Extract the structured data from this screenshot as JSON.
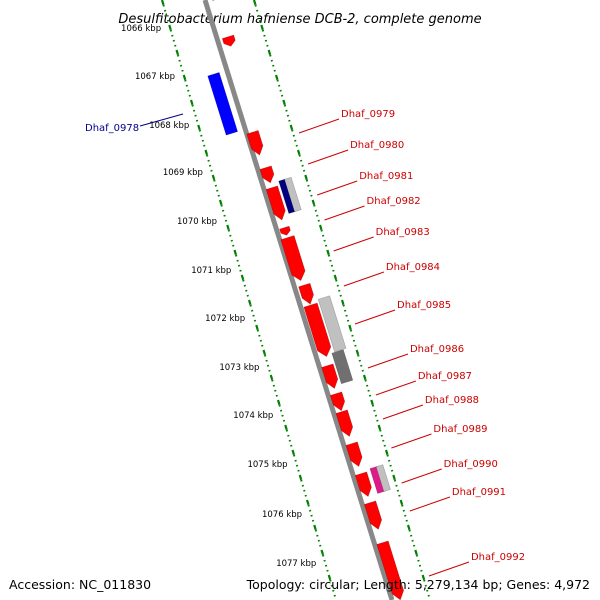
{
  "title": "Desulfitobacterium hafniense DCB-2, complete genome",
  "accession": "Accession: NC_011830",
  "topology": "Topology: circular; Length: 5,279,134 bp; Genes: 4,972",
  "kbp_labels": [
    "1066 kbp",
    "1067 kbp",
    "1068 kbp",
    "1069 kbp",
    "1070 kbp",
    "1071 kbp",
    "1072 kbp",
    "1073 kbp",
    "1074 kbp",
    "1075 kbp",
    "1076 kbp",
    "1077 kbp"
  ],
  "left_gene_label": {
    "text": "Dhaf_0978",
    "color": "#00008b"
  },
  "right_gene_labels": [
    "Dhaf_0979",
    "Dhaf_0980",
    "Dhaf_0981",
    "Dhaf_0982",
    "Dhaf_0983",
    "Dhaf_0984",
    "Dhaf_0985",
    "Dhaf_0986",
    "Dhaf_0987",
    "Dhaf_0988",
    "Dhaf_0989",
    "Dhaf_0990",
    "Dhaf_0991",
    "Dhaf_0992"
  ],
  "colors": {
    "forward_gene": "#ff0000",
    "reverse_gene": "#0000ff",
    "backbone": "#888888",
    "ticks": "#008000",
    "gene_label": "#cc0000",
    "highlight_navy": "#000080",
    "highlight_magenta": "#e0198a",
    "rna_gray": "#c0c0c0",
    "rna_dark": "#707070"
  }
}
